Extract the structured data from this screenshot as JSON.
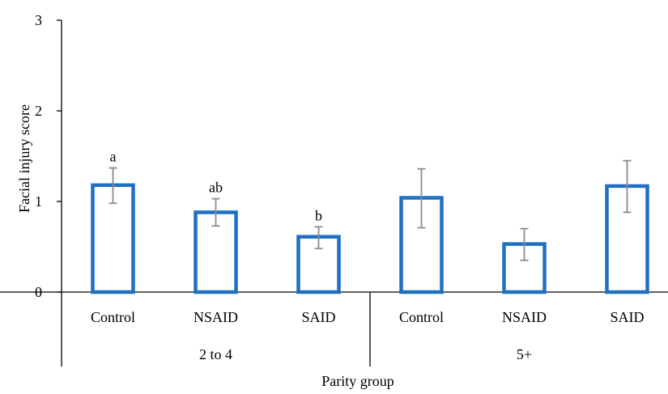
{
  "chart_data": {
    "type": "bar",
    "title": "",
    "ylabel": "Facial injury score",
    "xlabel": "Parity group",
    "ylim": [
      0,
      3
    ],
    "yticks": [
      0,
      1,
      2,
      3
    ],
    "grid": false,
    "legend": "none",
    "groups": [
      {
        "label": "2 to 4",
        "categories": [
          "Control",
          "NSAID",
          "SAID"
        ]
      },
      {
        "label": "5+",
        "categories": [
          "Control",
          "NSAID",
          "SAID"
        ]
      }
    ],
    "bars": [
      {
        "group": "2 to 4",
        "category": "Control",
        "value": 1.18,
        "err_low": 0.98,
        "err_high": 1.37,
        "sig": "a"
      },
      {
        "group": "2 to 4",
        "category": "NSAID",
        "value": 0.88,
        "err_low": 0.73,
        "err_high": 1.03,
        "sig": "ab"
      },
      {
        "group": "2 to 4",
        "category": "SAID",
        "value": 0.61,
        "err_low": 0.48,
        "err_high": 0.72,
        "sig": "b"
      },
      {
        "group": "5+",
        "category": "Control",
        "value": 1.04,
        "err_low": 0.71,
        "err_high": 1.36,
        "sig": ""
      },
      {
        "group": "5+",
        "category": "NSAID",
        "value": 0.53,
        "err_low": 0.35,
        "err_high": 0.7,
        "sig": ""
      },
      {
        "group": "5+",
        "category": "SAID",
        "value": 1.17,
        "err_low": 0.88,
        "err_high": 1.45,
        "sig": ""
      }
    ],
    "colors": {
      "bar_stroke": "#1f6fc2",
      "bar_fill": "#ffffff",
      "error_bar": "#8c8c8c",
      "axis": "#000000"
    }
  }
}
